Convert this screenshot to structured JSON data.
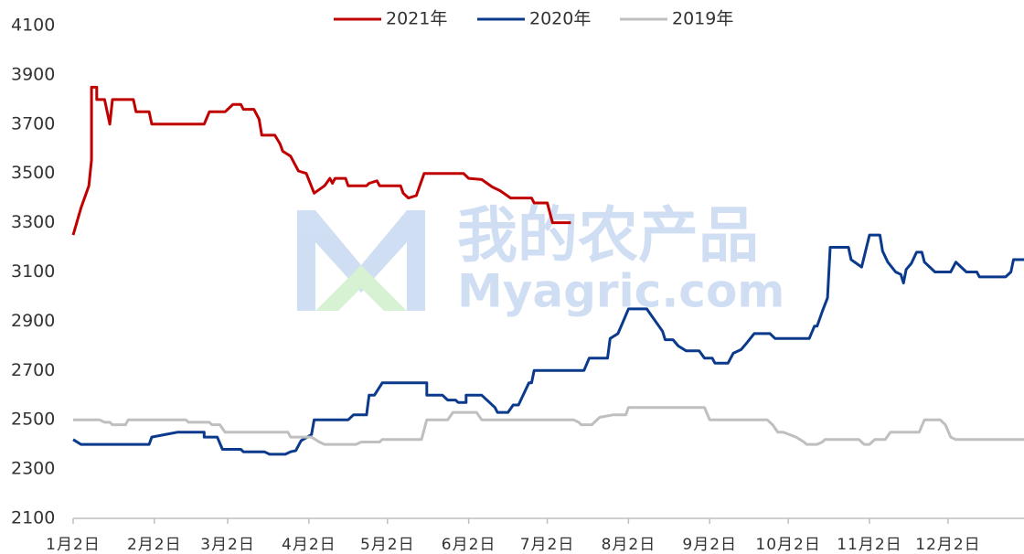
{
  "chart_data": {
    "type": "line",
    "watermark": [
      "我的农产品",
      "Myagric.com"
    ],
    "xlim": [
      0,
      363
    ],
    "xticks": [
      {
        "value": 0,
        "label": "1月2日"
      },
      {
        "value": 31,
        "label": "2月2日"
      },
      {
        "value": 59,
        "label": "3月2日"
      },
      {
        "value": 90,
        "label": "4月2日"
      },
      {
        "value": 120,
        "label": "5月2日"
      },
      {
        "value": 151,
        "label": "6月2日"
      },
      {
        "value": 181,
        "label": "7月2日"
      },
      {
        "value": 212,
        "label": "8月2日"
      },
      {
        "value": 243,
        "label": "9月2日"
      },
      {
        "value": 273,
        "label": "10月2日"
      },
      {
        "value": 304,
        "label": "11月2日"
      },
      {
        "value": 334,
        "label": "12月2日"
      }
    ],
    "ylim": [
      2100,
      4100
    ],
    "yticks": [
      2100,
      2300,
      2500,
      2700,
      2900,
      3100,
      3300,
      3500,
      3700,
      3900,
      4100
    ],
    "legend": "top",
    "series": [
      {
        "name": "2021年",
        "color": "#c00000",
        "x": [
          0,
          3,
          6,
          7,
          7,
          9,
          9,
          12,
          14,
          15,
          23,
          24,
          29,
          30,
          50,
          52,
          58,
          61,
          64,
          65,
          69,
          71,
          72,
          77,
          79,
          80,
          83,
          86,
          89,
          92,
          96,
          98,
          99,
          100,
          104,
          105,
          112,
          113,
          116,
          117,
          125,
          126,
          128,
          131,
          134,
          149,
          151,
          156,
          160,
          163,
          167,
          175,
          176,
          181,
          183,
          190
        ],
        "values": [
          3250,
          3360,
          3450,
          3555,
          3850,
          3850,
          3800,
          3800,
          3700,
          3800,
          3800,
          3750,
          3750,
          3700,
          3700,
          3750,
          3750,
          3780,
          3780,
          3760,
          3760,
          3720,
          3655,
          3655,
          3620,
          3590,
          3570,
          3510,
          3500,
          3420,
          3450,
          3480,
          3460,
          3480,
          3480,
          3450,
          3450,
          3460,
          3470,
          3450,
          3450,
          3420,
          3400,
          3410,
          3500,
          3500,
          3480,
          3475,
          3445,
          3430,
          3400,
          3400,
          3380,
          3380,
          3300,
          3300
        ]
      },
      {
        "name": "2020年",
        "color": "#0b3a8c",
        "x": [
          0,
          3,
          29,
          30,
          35,
          40,
          50,
          50,
          55,
          57,
          64,
          65,
          73,
          75,
          81,
          83,
          85,
          87,
          91,
          92,
          105,
          107,
          112,
          113,
          115,
          118,
          135,
          135,
          141,
          143,
          146,
          147,
          150,
          150,
          156,
          159,
          161,
          162,
          166,
          168,
          170,
          174,
          175,
          176,
          195,
          197,
          204,
          205,
          208,
          210,
          212,
          219,
          222,
          225,
          226,
          229,
          231,
          234,
          239,
          241,
          244,
          245,
          250,
          252,
          255,
          257,
          260,
          266,
          268,
          281,
          283,
          284,
          286,
          288,
          289,
          296,
          297,
          301,
          304,
          308,
          309,
          311,
          314,
          316,
          317,
          318,
          320,
          322,
          324,
          325,
          327,
          329,
          335,
          337,
          339,
          341,
          345,
          346,
          356,
          358,
          359,
          363
        ],
        "values": [
          2420,
          2400,
          2400,
          2430,
          2440,
          2450,
          2450,
          2430,
          2430,
          2380,
          2380,
          2370,
          2370,
          2360,
          2360,
          2370,
          2375,
          2415,
          2440,
          2500,
          2500,
          2520,
          2520,
          2600,
          2600,
          2650,
          2650,
          2600,
          2600,
          2580,
          2580,
          2570,
          2570,
          2600,
          2600,
          2570,
          2550,
          2530,
          2530,
          2560,
          2560,
          2650,
          2650,
          2700,
          2700,
          2750,
          2750,
          2830,
          2850,
          2900,
          2950,
          2950,
          2905,
          2860,
          2825,
          2825,
          2800,
          2780,
          2780,
          2750,
          2750,
          2730,
          2730,
          2770,
          2785,
          2810,
          2850,
          2850,
          2830,
          2830,
          2880,
          2880,
          2940,
          2995,
          3200,
          3200,
          3150,
          3120,
          3250,
          3250,
          3185,
          3140,
          3100,
          3090,
          3055,
          3110,
          3135,
          3180,
          3180,
          3140,
          3120,
          3100,
          3100,
          3140,
          3120,
          3100,
          3100,
          3080,
          3080,
          3100,
          3150,
          3150
        ]
      },
      {
        "name": "2019年",
        "color": "#bfbfbf",
        "x": [
          0,
          10,
          12,
          14,
          15,
          20,
          21,
          43,
          44,
          52,
          53,
          56,
          58,
          82,
          83,
          91,
          94,
          96,
          108,
          110,
          117,
          118,
          133,
          134,
          135,
          143,
          145,
          154,
          156,
          191,
          193,
          194,
          198,
          201,
          206,
          211,
          212,
          241,
          243,
          265,
          267,
          269,
          271,
          276,
          279,
          280,
          284,
          286,
          287,
          300,
          302,
          304,
          306,
          310,
          312,
          323,
          325,
          331,
          333,
          335,
          337,
          363
        ],
        "values": [
          2500,
          2500,
          2490,
          2490,
          2480,
          2480,
          2500,
          2500,
          2490,
          2490,
          2480,
          2480,
          2450,
          2450,
          2430,
          2430,
          2410,
          2400,
          2400,
          2410,
          2410,
          2420,
          2420,
          2460,
          2500,
          2500,
          2530,
          2530,
          2500,
          2500,
          2490,
          2480,
          2480,
          2510,
          2520,
          2520,
          2550,
          2550,
          2500,
          2500,
          2480,
          2450,
          2450,
          2430,
          2410,
          2400,
          2400,
          2410,
          2420,
          2420,
          2400,
          2400,
          2420,
          2420,
          2450,
          2450,
          2500,
          2500,
          2480,
          2430,
          2420,
          2420
        ]
      }
    ]
  }
}
